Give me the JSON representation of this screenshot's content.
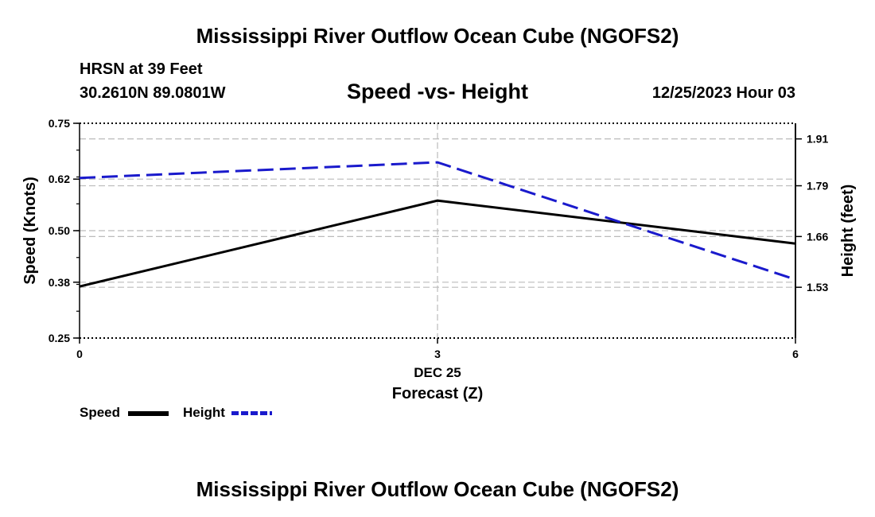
{
  "header": {
    "title": "Mississippi River Outflow Ocean Cube (NGOFS2)",
    "station": "HRSN at 39 Feet",
    "location": "30.2610N  89.0801W",
    "subtitle": "Speed -vs- Height",
    "datetime": "12/25/2023 Hour 03"
  },
  "legend": {
    "speed_label": "Speed",
    "height_label": "Height"
  },
  "footer": {
    "title": "Mississippi River Outflow Ocean Cube (NGOFS2)"
  },
  "colors": {
    "speed": "#000000",
    "height": "#1a1acc",
    "grid": "#bbbbbb"
  },
  "chart_data": {
    "type": "line",
    "title": "Speed -vs- Height",
    "xlabel": "Forecast (Z)",
    "ylabel": "Speed (Knots)",
    "y2label": "Height (feet)",
    "x": [
      0,
      3,
      6
    ],
    "x_ticks": [
      0,
      3,
      6
    ],
    "x_tick_labels": [
      "0",
      "3",
      "6"
    ],
    "x_sublabel": "DEC 25",
    "xlim": [
      0,
      6
    ],
    "ylim": [
      0.25,
      0.75
    ],
    "y_ticks": [
      0.25,
      0.38,
      0.5,
      0.62,
      0.75
    ],
    "y_tick_labels": [
      "0.25",
      "0.38",
      "0.50",
      "0.62",
      "0.75"
    ],
    "y2lim": [
      1.4,
      1.95
    ],
    "y2_ticks": [
      1.53,
      1.66,
      1.79,
      1.91
    ],
    "y2_tick_labels": [
      "1.53",
      "1.66",
      "1.79",
      "1.91"
    ],
    "series": [
      {
        "name": "Speed",
        "axis": "left",
        "style": "solid",
        "values": [
          0.37,
          0.57,
          0.47
        ]
      },
      {
        "name": "Height",
        "axis": "right",
        "style": "dashed",
        "values": [
          1.81,
          1.85,
          1.55
        ]
      }
    ],
    "grid": true
  }
}
